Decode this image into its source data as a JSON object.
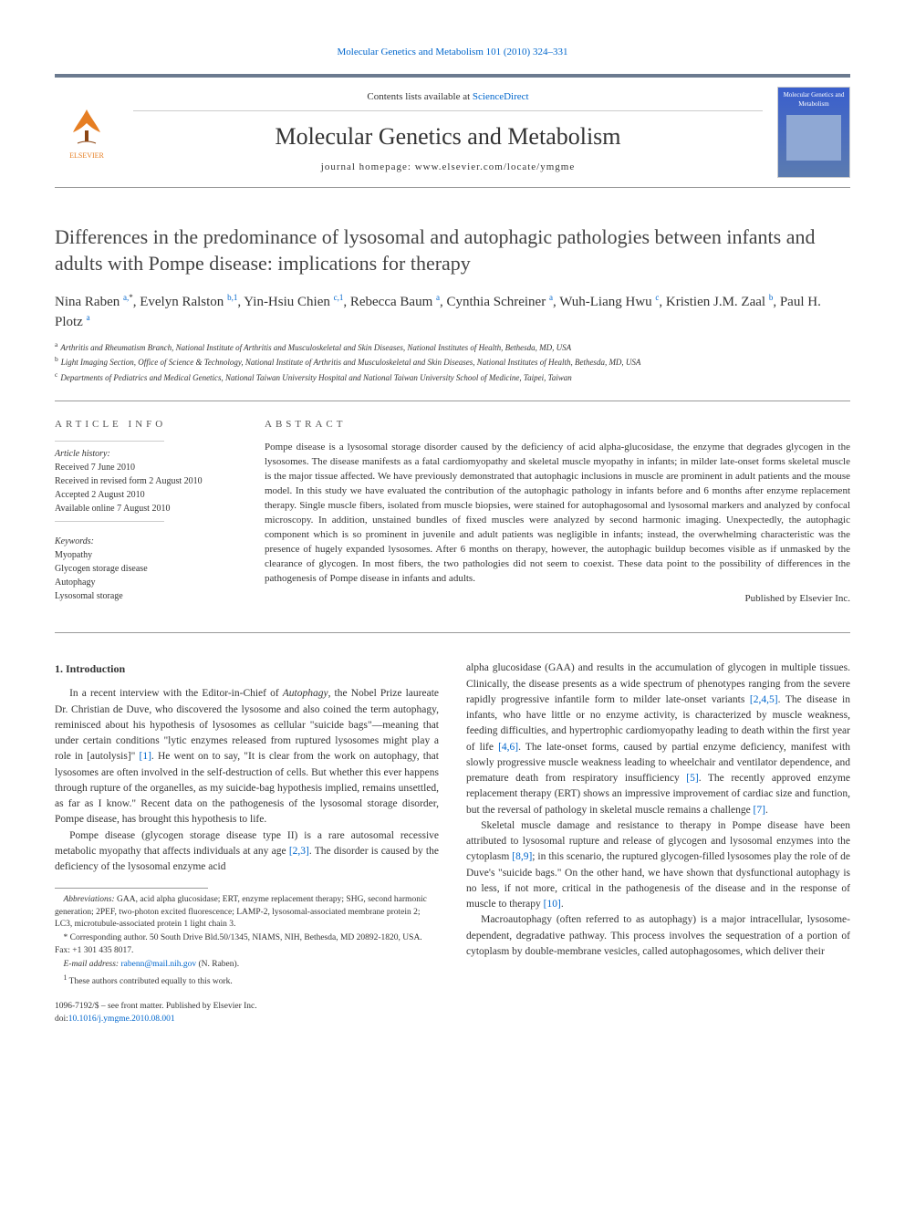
{
  "top_link": {
    "volume_text": "Molecular Genetics and Metabolism 101 (2010) 324–331"
  },
  "masthead": {
    "contents_prefix": "Contents lists available at ",
    "contents_link": "ScienceDirect",
    "journal_name": "Molecular Genetics and Metabolism",
    "homepage_label": "journal homepage: ",
    "homepage_url": "www.elsevier.com/locate/ymgme",
    "publisher": "ELSEVIER",
    "cover_title": "Molecular Genetics and Metabolism"
  },
  "article": {
    "title": "Differences in the predominance of lysosomal and autophagic pathologies between infants and adults with Pompe disease: implications for therapy",
    "authors_html_parts": [
      {
        "name": "Nina Raben",
        "sup": "a,*"
      },
      {
        "name": "Evelyn Ralston",
        "sup": "b,1"
      },
      {
        "name": "Yin-Hsiu Chien",
        "sup": "c,1"
      },
      {
        "name": "Rebecca Baum",
        "sup": "a"
      },
      {
        "name": "Cynthia Schreiner",
        "sup": "a"
      },
      {
        "name": "Wuh-Liang Hwu",
        "sup": "c"
      },
      {
        "name": "Kristien J.M. Zaal",
        "sup": "b"
      },
      {
        "name": "Paul H. Plotz",
        "sup": "a"
      }
    ],
    "affiliations": [
      {
        "key": "a",
        "text": "Arthritis and Rheumatism Branch, National Institute of Arthritis and Musculoskeletal and Skin Diseases, National Institutes of Health, Bethesda, MD, USA"
      },
      {
        "key": "b",
        "text": "Light Imaging Section, Office of Science & Technology, National Institute of Arthritis and Musculoskeletal and Skin Diseases, National Institutes of Health, Bethesda, MD, USA"
      },
      {
        "key": "c",
        "text": "Departments of Pediatrics and Medical Genetics, National Taiwan University Hospital and National Taiwan University School of Medicine, Taipei, Taiwan"
      }
    ]
  },
  "info": {
    "heading": "ARTICLE INFO",
    "history_label": "Article history:",
    "history": [
      "Received 7 June 2010",
      "Received in revised form 2 August 2010",
      "Accepted 2 August 2010",
      "Available online 7 August 2010"
    ],
    "keywords_label": "Keywords:",
    "keywords": [
      "Myopathy",
      "Glycogen storage disease",
      "Autophagy",
      "Lysosomal storage"
    ]
  },
  "abstract": {
    "heading": "ABSTRACT",
    "text": "Pompe disease is a lysosomal storage disorder caused by the deficiency of acid alpha-glucosidase, the enzyme that degrades glycogen in the lysosomes. The disease manifests as a fatal cardiomyopathy and skeletal muscle myopathy in infants; in milder late-onset forms skeletal muscle is the major tissue affected. We have previously demonstrated that autophagic inclusions in muscle are prominent in adult patients and the mouse model. In this study we have evaluated the contribution of the autophagic pathology in infants before and 6 months after enzyme replacement therapy. Single muscle fibers, isolated from muscle biopsies, were stained for autophagosomal and lysosomal markers and analyzed by confocal microscopy. In addition, unstained bundles of fixed muscles were analyzed by second harmonic imaging. Unexpectedly, the autophagic component which is so prominent in juvenile and adult patients was negligible in infants; instead, the overwhelming characteristic was the presence of hugely expanded lysosomes. After 6 months on therapy, however, the autophagic buildup becomes visible as if unmasked by the clearance of glycogen. In most fibers, the two pathologies did not seem to coexist. These data point to the possibility of differences in the pathogenesis of Pompe disease in infants and adults.",
    "publisher_line": "Published by Elsevier Inc."
  },
  "body": {
    "section_heading": "1. Introduction",
    "left_paragraphs": [
      "In a recent interview with the Editor-in-Chief of Autophagy, the Nobel Prize laureate Dr. Christian de Duve, who discovered the lysosome and also coined the term autophagy, reminisced about his hypothesis of lysosomes as cellular \"suicide bags\"—meaning that under certain conditions \"lytic enzymes released from ruptured lysosomes might play a role in [autolysis]\" [1]. He went on to say, \"It is clear from the work on autophagy, that lysosomes are often involved in the self-destruction of cells. But whether this ever happens through rupture of the organelles, as my suicide-bag hypothesis implied, remains unsettled, as far as I know.\" Recent data on the pathogenesis of the lysosomal storage disorder, Pompe disease, has brought this hypothesis to life.",
      "Pompe disease (glycogen storage disease type II) is a rare autosomal recessive metabolic myopathy that affects individuals at any age [2,3]. The disorder is caused by the deficiency of the lysosomal enzyme acid"
    ],
    "right_paragraphs": [
      "alpha glucosidase (GAA) and results in the accumulation of glycogen in multiple tissues. Clinically, the disease presents as a wide spectrum of phenotypes ranging from the severe rapidly progressive infantile form to milder late-onset variants [2,4,5]. The disease in infants, who have little or no enzyme activity, is characterized by muscle weakness, feeding difficulties, and hypertrophic cardiomyopathy leading to death within the first year of life [4,6]. The late-onset forms, caused by partial enzyme deficiency, manifest with slowly progressive muscle weakness leading to wheelchair and ventilator dependence, and premature death from respiratory insufficiency [5]. The recently approved enzyme replacement therapy (ERT) shows an impressive improvement of cardiac size and function, but the reversal of pathology in skeletal muscle remains a challenge [7].",
      "Skeletal muscle damage and resistance to therapy in Pompe disease have been attributed to lysosomal rupture and release of glycogen and lysosomal enzymes into the cytoplasm [8,9]; in this scenario, the ruptured glycogen-filled lysosomes play the role of de Duve's \"suicide bags.\" On the other hand, we have shown that dysfunctional autophagy is no less, if not more, critical in the pathogenesis of the disease and in the response of muscle to therapy [10].",
      "Macroautophagy (often referred to as autophagy) is a major intracellular, lysosome-dependent, degradative pathway. This process involves the sequestration of a portion of cytoplasm by double-membrane vesicles, called autophagosomes, which deliver their"
    ]
  },
  "footnotes": {
    "abbrev_label": "Abbreviations:",
    "abbrev_text": " GAA, acid alpha glucosidase; ERT, enzyme replacement therapy; SHG, second harmonic generation; 2PEF, two-photon excited fluorescence; LAMP-2, lysosomal-associated membrane protein 2; LC3, microtubule-associated protein 1 light chain 3.",
    "corr_label": "* Corresponding author.",
    "corr_text": " 50 South Drive Bld.50/1345, NIAMS, NIH, Bethesda, MD 20892-1820, USA. Fax: +1 301 435 8017.",
    "email_label": "E-mail address:",
    "email": "rabenn@mail.nih.gov",
    "email_suffix": " (N. Raben).",
    "equal_label": "1",
    "equal_text": " These authors contributed equally to this work."
  },
  "copyright": {
    "issn_line": "1096-7192/$ – see front matter. Published by Elsevier Inc.",
    "doi_prefix": "doi:",
    "doi": "10.1016/j.ymgme.2010.08.001"
  },
  "colors": {
    "link": "#0066cc",
    "rule": "#6b7a8f",
    "text": "#333333",
    "logo": "#e67e22"
  }
}
